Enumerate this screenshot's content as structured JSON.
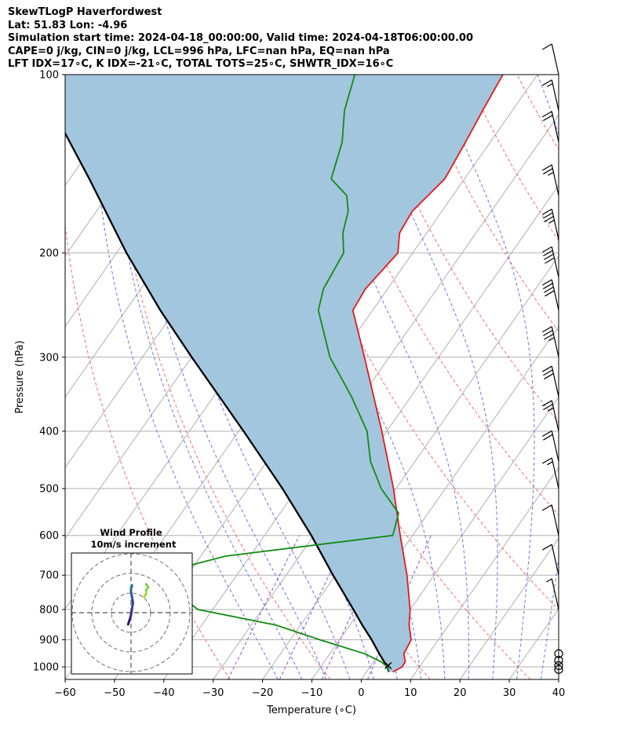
{
  "header": {
    "line1": "SkewTLogP Haverfordwest",
    "line2": "Lat: 51.83   Lon: -4.96",
    "line3": "Simulation start time: 2024-04-18_00:00:00, Valid time: 2024-04-18T06:00:00.00",
    "line4": "CAPE=0 j/kg, CIN=0 j/kg, LCL=996 hPa, LFC=nan hPa, EQ=nan hPa",
    "line5": "LFT IDX=17∘C, K IDX=-21∘C, TOTAL TOTS=25∘C, SHWTR_IDX=16∘C"
  },
  "chart_data": {
    "type": "line",
    "subtype": "skew-t log-p",
    "xlabel": "Temperature (∘C)",
    "ylabel": "Pressure (hPa)",
    "xlim": [
      -60,
      40
    ],
    "ylim": [
      1050,
      100
    ],
    "yscale": "log",
    "x_ticks": [
      "−60",
      "−50",
      "−40",
      "−30",
      "−20",
      "−10",
      "0",
      "10",
      "20",
      "30",
      "40"
    ],
    "y_ticks": [
      "100",
      "200",
      "300",
      "400",
      "500",
      "600",
      "700",
      "800",
      "900",
      "1000"
    ],
    "grid": true,
    "colors": {
      "temperature": "#e31a1c",
      "dewpoint": "#138a13",
      "parcel": "#000000",
      "shade": "#a3c6df",
      "dry_adiabat": "#f07070",
      "moist_adiabat": "#6b78f0",
      "mixing_ratio": "#9a50c8",
      "isotherm": "#b0b0b0"
    },
    "series": [
      {
        "name": "temperature",
        "pressure": [
          1020,
          1000,
          980,
          950,
          900,
          850,
          800,
          700,
          600,
          500,
          400,
          300,
          250,
          230,
          200,
          185,
          170,
          150,
          130,
          115,
          100
        ],
        "values": [
          5.3,
          6.5,
          6.4,
          5.0,
          4.5,
          2.0,
          0.0,
          -5.5,
          -12.5,
          -20.5,
          -31.0,
          -45.0,
          -54.0,
          -54.5,
          -53.0,
          -55.5,
          -56.0,
          -54.0,
          -55.0,
          -56.0,
          -57.0
        ]
      },
      {
        "name": "dewpoint",
        "pressure": [
          1020,
          1000,
          980,
          950,
          900,
          850,
          800,
          700,
          650,
          600,
          550,
          500,
          450,
          400,
          350,
          300,
          250,
          230,
          200,
          185,
          170,
          160,
          150,
          130,
          115,
          100
        ],
        "values": [
          4.5,
          3.5,
          1.5,
          -3.0,
          -14.0,
          -25.0,
          -43.0,
          -57.0,
          -45.0,
          -14.0,
          -16.0,
          -23.0,
          -29.0,
          -34.0,
          -42.0,
          -52.0,
          -61.0,
          -63.0,
          -64.0,
          -67.0,
          -69.0,
          -71.5,
          -77.0,
          -80.0,
          -84.0,
          -87.0
        ]
      },
      {
        "name": "parcel",
        "pressure": [
          1020,
          1000,
          950,
          900,
          850,
          800,
          700,
          600,
          500,
          400,
          300,
          250,
          200,
          150,
          100
        ],
        "values": [
          4.5,
          3.5,
          0.0,
          -3.5,
          -7.5,
          -11.5,
          -20.5,
          -30.5,
          -43.0,
          -59.0,
          -80.0,
          -93.0,
          -108.0,
          -126.0,
          -152.0
        ]
      }
    ],
    "wind_barbs": {
      "pressure": [
        1010,
        995,
        975,
        950,
        800,
        700,
        600,
        500,
        450,
        400,
        350,
        300,
        250,
        220,
        190,
        160,
        130,
        115,
        100
      ],
      "speed_kt": [
        0,
        0,
        0,
        0,
        5,
        10,
        10,
        15,
        20,
        25,
        30,
        35,
        40,
        40,
        35,
        25,
        20,
        15,
        10
      ]
    },
    "hodograph": {
      "title": "Wind Profile",
      "subtitle": "10m/s increment",
      "rings_ms": [
        10,
        20,
        30
      ],
      "u": [
        -1.5,
        -1.0,
        -0.5,
        0.0,
        0.5,
        1.0,
        0.5,
        0.0,
        0.0,
        0.5,
        0.5
      ],
      "v": [
        6.0,
        4.5,
        3.0,
        1.0,
        -2.0,
        -5.0,
        -8.0,
        -10.5,
        -12.5,
        -13.5,
        -14.0
      ],
      "u2": [
        3.0,
        3.5,
        3.5,
        4.0,
        3.5
      ],
      "v2": [
        -8.0,
        -9.5,
        -11.5,
        -13.0,
        -14.5
      ]
    }
  }
}
